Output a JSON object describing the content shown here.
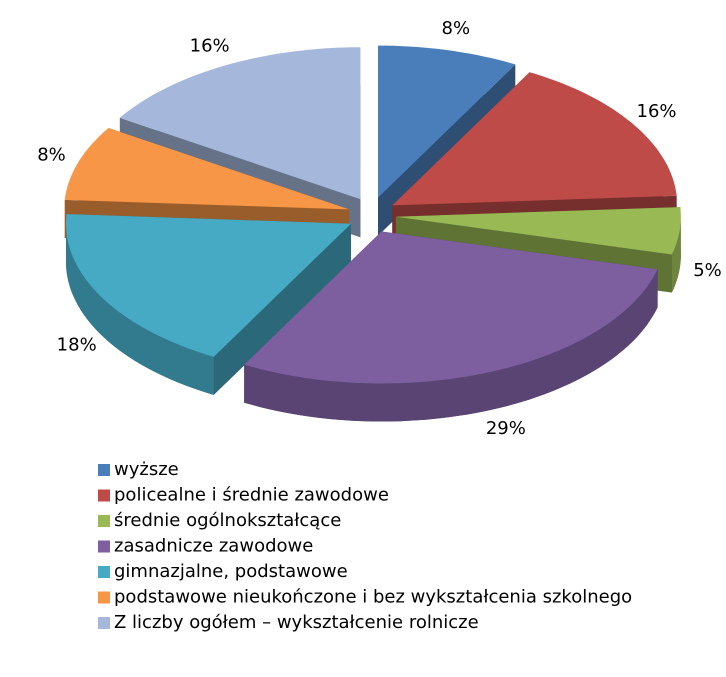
{
  "chart_data": {
    "type": "pie",
    "categories": [
      "wyższe",
      "policealne i średnie zawodowe",
      "średnie ogólnokształcące",
      "zasadnicze zawodowe",
      "gimnazjalne, podstawowe",
      "podstawowe nieukończone i bez wykształcenia szkolnego",
      "Z liczby ogółem – wykształcenie rolnicze"
    ],
    "values": [
      8,
      16,
      5,
      29,
      18,
      8,
      16
    ],
    "value_labels": [
      "8%",
      "16%",
      "5%",
      "29%",
      "18%",
      "8%",
      "16%"
    ],
    "colors": [
      "#4a7ebb",
      "#be4b48",
      "#98b954",
      "#7d5fa0",
      "#46aac5",
      "#f79646",
      "#a5b8dc"
    ],
    "legend": "bottom"
  }
}
